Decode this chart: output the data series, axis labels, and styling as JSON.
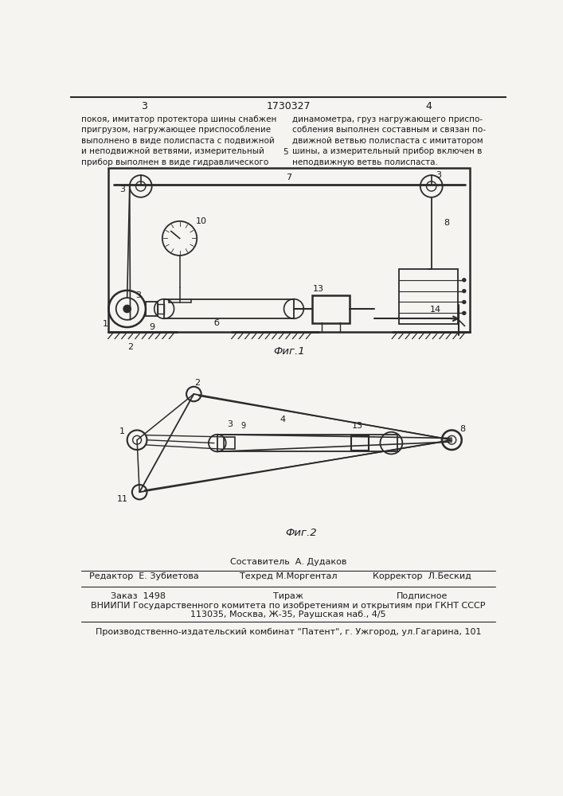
{
  "bg_color": "#f5f4f0",
  "text_color": "#1a1a1a",
  "line_color": "#2a2a2a",
  "page_num_left": "3",
  "page_num_center": "1730327",
  "page_num_right": "4",
  "header_text_left": "покоя, имитатор протектора шины снабжен\nпригрузом, нагружающее приспособление\nвыполнено в виде полиспаста с подвижной\nи неподвижной ветвями, измерительный\nприбор выполнен в виде гидравлического",
  "header_text_right": "динамометра, груз нагружающего приспо-\nсобления выполнен составным и связан по-\nдвижной ветвью полиспаста с имитатором\nшины, а измерительный прибор включен в\nнеподвижную ветвь полиспаста.",
  "header_number5": "5",
  "fig1_label": "Фиг.1",
  "fig2_label": "Фиг.2",
  "footer_editor_label": "Редактор",
  "footer_editor_name": "Е. Зубиетова",
  "footer_compiler_label": "Составитель",
  "footer_compiler_name": "А. Дудаков",
  "footer_tech_label": "Техред",
  "footer_tech_name": "М.Моргентал",
  "footer_corrector_label": "Корректор",
  "footer_corrector_name": "Л.Бескид",
  "footer_order_label": "Заказ",
  "footer_order_num": "1498",
  "footer_circulation": "Тираж",
  "footer_subscription": "Подписное",
  "footer_vniiipi": "ВНИИПИ Государственного комитета по изобретениям и открытиям при ГКНТ СССР",
  "footer_address": "113035, Москва, Ж-35, Раушская наб., 4/5",
  "footer_plant": "Производственно-издательский комбинат \"Патент\", г. Ужгород, ул.Гагарина, 101"
}
